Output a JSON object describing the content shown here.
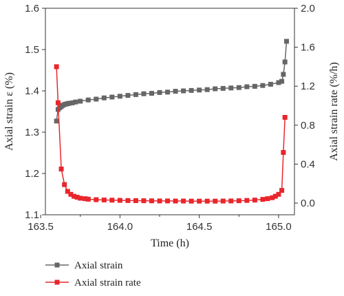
{
  "chart_data": {
    "type": "line",
    "xlabel": "Time (h)",
    "ylabel_left": "Axial strain ε (%)",
    "ylabel_right": "Axial strain rate (%/h)",
    "xlim": [
      163.53,
      165.1
    ],
    "ylim_left": [
      1.1,
      1.6
    ],
    "ylim_right": [
      -0.12,
      2.0
    ],
    "x_ticks": [
      "163.5",
      "164.0",
      "164.5",
      "165.0"
    ],
    "x_tick_values": [
      163.5,
      164.0,
      164.5,
      165.0
    ],
    "y_left_ticks": [
      "1.1",
      "1.2",
      "1.3",
      "1.4",
      "1.5",
      "1.6"
    ],
    "y_left_tick_values": [
      1.1,
      1.2,
      1.3,
      1.4,
      1.5,
      1.6
    ],
    "y_right_ticks": [
      "0.0",
      "0.4",
      "0.8",
      "1.2",
      "1.6",
      "2.0"
    ],
    "y_right_tick_values": [
      0.0,
      0.4,
      0.8,
      1.2,
      1.6,
      2.0
    ],
    "series": [
      {
        "name": "Axial strain",
        "axis": "left",
        "color": "#666666",
        "x": [
          163.6,
          163.61,
          163.62,
          163.63,
          163.64,
          163.65,
          163.66,
          163.67,
          163.68,
          163.7,
          163.72,
          163.75,
          163.8,
          163.85,
          163.9,
          163.95,
          164.0,
          164.05,
          164.1,
          164.15,
          164.2,
          164.25,
          164.3,
          164.35,
          164.4,
          164.45,
          164.5,
          164.55,
          164.6,
          164.65,
          164.7,
          164.75,
          164.8,
          164.85,
          164.9,
          164.95,
          165.0,
          165.02,
          165.03,
          165.04,
          165.05
        ],
        "values": [
          1.327,
          1.355,
          1.359,
          1.362,
          1.365,
          1.367,
          1.368,
          1.369,
          1.37,
          1.371,
          1.373,
          1.375,
          1.378,
          1.38,
          1.383,
          1.385,
          1.387,
          1.389,
          1.391,
          1.393,
          1.394,
          1.396,
          1.397,
          1.399,
          1.4,
          1.401,
          1.402,
          1.403,
          1.405,
          1.406,
          1.407,
          1.408,
          1.41,
          1.411,
          1.413,
          1.416,
          1.42,
          1.423,
          1.44,
          1.47,
          1.52
        ]
      },
      {
        "name": "Axial strain rate",
        "axis": "right",
        "color": "#e8262c",
        "x": [
          163.6,
          163.61,
          163.63,
          163.65,
          163.67,
          163.69,
          163.71,
          163.73,
          163.75,
          163.78,
          163.8,
          163.85,
          163.9,
          163.95,
          164.0,
          164.05,
          164.1,
          164.15,
          164.2,
          164.25,
          164.3,
          164.35,
          164.4,
          164.45,
          164.5,
          164.55,
          164.6,
          164.65,
          164.7,
          164.75,
          164.8,
          164.85,
          164.9,
          164.93,
          164.96,
          164.98,
          165.0,
          165.02,
          165.03,
          165.04
        ],
        "values": [
          1.4,
          1.03,
          0.35,
          0.19,
          0.12,
          0.09,
          0.07,
          0.06,
          0.05,
          0.045,
          0.04,
          0.035,
          0.032,
          0.03,
          0.028,
          0.026,
          0.025,
          0.024,
          0.023,
          0.022,
          0.022,
          0.021,
          0.021,
          0.02,
          0.02,
          0.02,
          0.02,
          0.021,
          0.022,
          0.024,
          0.027,
          0.031,
          0.038,
          0.045,
          0.055,
          0.07,
          0.09,
          0.13,
          0.52,
          0.88
        ]
      }
    ],
    "legend": {
      "placement": "bottom-left",
      "entries": [
        "Axial strain",
        "Axial strain rate"
      ]
    },
    "grid": false
  }
}
